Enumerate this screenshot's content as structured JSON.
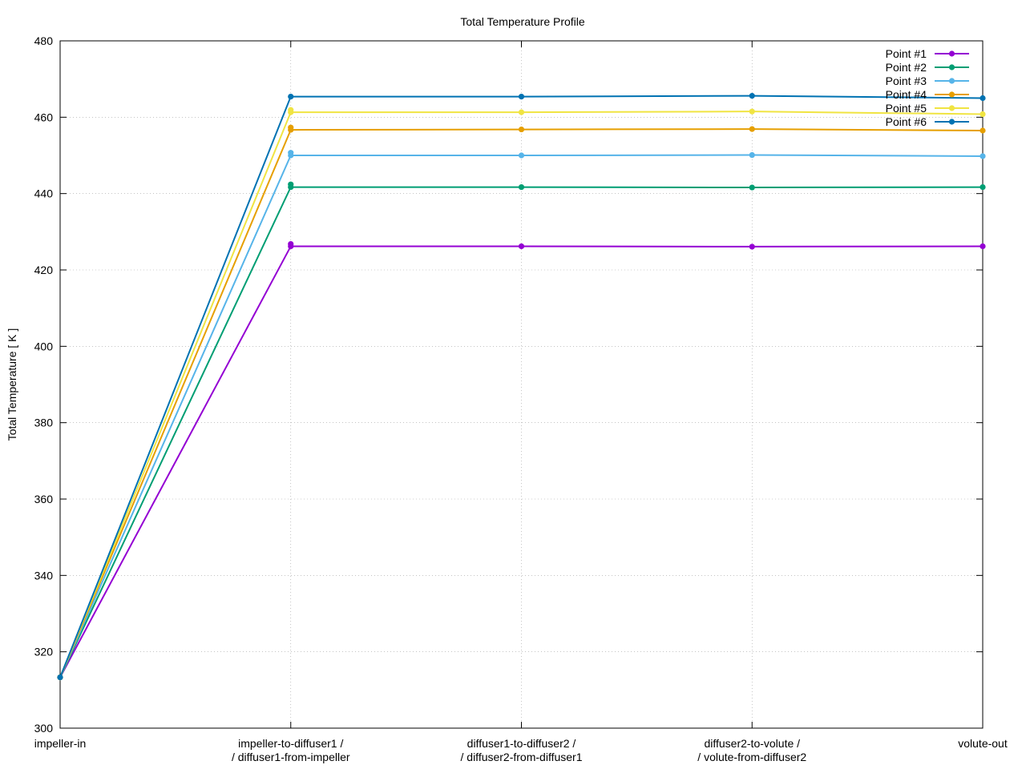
{
  "chart_data": {
    "type": "line",
    "title": "Total Temperature Profile",
    "xlabel": "",
    "ylabel": "Total Temperature [ K ]",
    "ylim": [
      300,
      480
    ],
    "yticks": [
      300,
      320,
      340,
      360,
      380,
      400,
      420,
      440,
      460,
      480
    ],
    "grid": "dotted",
    "legend_position": "top-right",
    "categories": [
      {
        "line1": "impeller-in",
        "line2": ""
      },
      {
        "line1": "impeller-to-diffuser1 /",
        "line2": "/ diffuser1-from-impeller"
      },
      {
        "line1": "diffuser1-to-diffuser2 /",
        "line2": "/ diffuser2-from-diffuser1"
      },
      {
        "line1": "diffuser2-to-volute /",
        "line2": "/ volute-from-diffuser2"
      },
      {
        "line1": "volute-out",
        "line2": ""
      }
    ],
    "series": [
      {
        "name": "Point #1",
        "color": "#9400d3",
        "values": [
          313.3,
          426.2,
          426.2,
          426.1,
          426.2
        ],
        "extra_point": {
          "x": 1,
          "y": 426.8
        }
      },
      {
        "name": "Point #2",
        "color": "#009e73",
        "values": [
          313.3,
          441.7,
          441.7,
          441.6,
          441.7
        ],
        "extra_point": {
          "x": 1,
          "y": 442.4
        }
      },
      {
        "name": "Point #3",
        "color": "#56b4e9",
        "values": [
          313.3,
          450.0,
          450.0,
          450.1,
          449.8
        ],
        "extra_point": {
          "x": 1,
          "y": 450.7
        }
      },
      {
        "name": "Point #4",
        "color": "#e69f00",
        "values": [
          313.3,
          456.7,
          456.8,
          456.9,
          456.5
        ],
        "extra_point": {
          "x": 1,
          "y": 457.3
        }
      },
      {
        "name": "Point #5",
        "color": "#f0e442",
        "values": [
          313.3,
          461.3,
          461.3,
          461.5,
          460.8
        ],
        "extra_point": {
          "x": 1,
          "y": 461.9
        }
      },
      {
        "name": "Point #6",
        "color": "#0072b2",
        "values": [
          313.3,
          465.4,
          465.4,
          465.6,
          465.0
        ]
      }
    ]
  }
}
